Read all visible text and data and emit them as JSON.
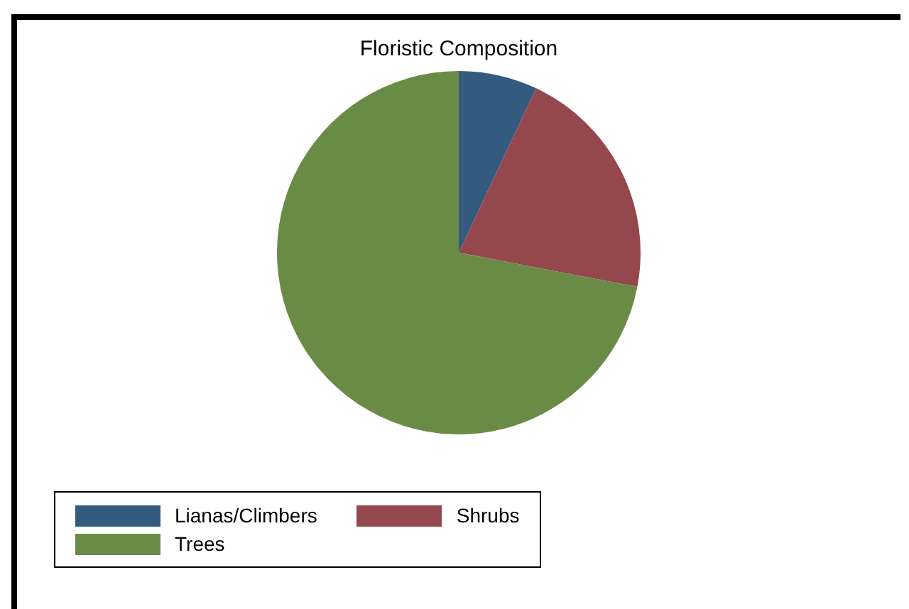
{
  "chart_data": {
    "type": "pie",
    "title": "Floristic Composition",
    "categories": [
      "Lianas/Climbers",
      "Shrubs",
      "Trees"
    ],
    "values": [
      7,
      21,
      72
    ],
    "colors": [
      "#335b7f",
      "#94474d",
      "#6a8b46"
    ],
    "legend": "bottom left"
  }
}
